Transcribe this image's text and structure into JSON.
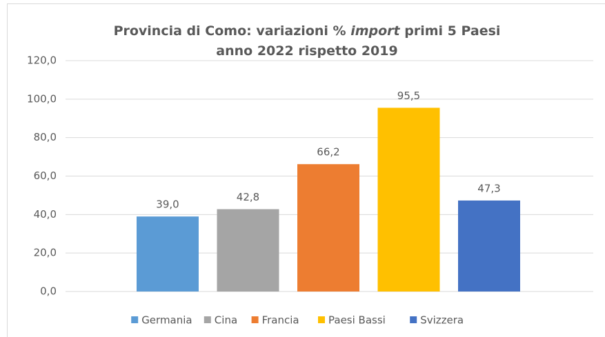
{
  "chart_data": {
    "type": "bar",
    "title": [
      [
        "Provincia di Como: variazioni % ",
        "import",
        " primi 5 Paesi"
      ],
      [
        "anno 2022 rispetto 2019"
      ]
    ],
    "categories": [
      "Germania",
      "Cina",
      "Francia",
      "Paesi Bassi",
      "Svizzera"
    ],
    "values": [
      39.0,
      42.8,
      66.2,
      95.5,
      47.3
    ],
    "value_labels": [
      "39,0",
      "42,8",
      "66,2",
      "95,5",
      "47,3"
    ],
    "colors": [
      "#5b9bd5",
      "#a5a5a5",
      "#ed7d31",
      "#ffc000",
      "#4472c4"
    ],
    "ylim": [
      0,
      120
    ],
    "yticks": [
      {
        "value": 0,
        "label": "0,0"
      },
      {
        "value": 20,
        "label": "20,0"
      },
      {
        "value": 40,
        "label": "40,0"
      },
      {
        "value": 60,
        "label": "60,0"
      },
      {
        "value": 80,
        "label": "80,0"
      },
      {
        "value": 100,
        "label": "100,0"
      },
      {
        "value": 120,
        "label": "120,0"
      }
    ],
    "grid": true,
    "legend": "bottom"
  }
}
